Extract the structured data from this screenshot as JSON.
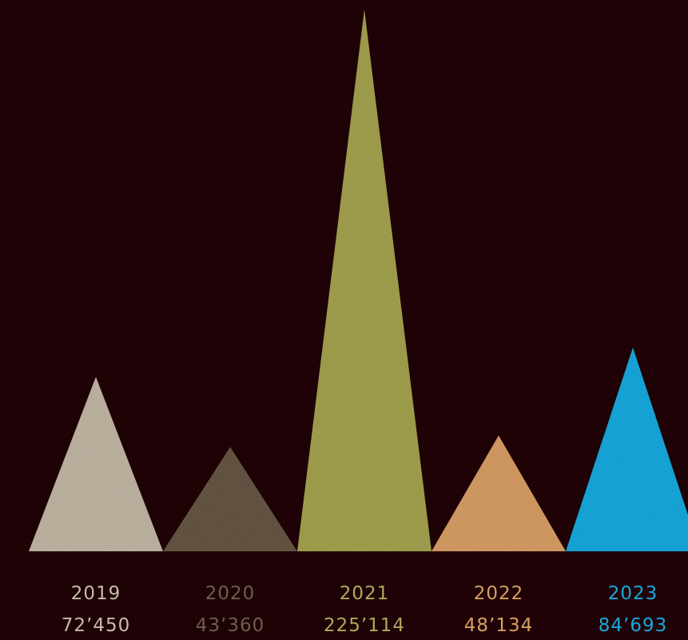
{
  "chart_data": {
    "type": "bar",
    "shape": "triangle",
    "title": "",
    "xlabel": "",
    "ylabel": "",
    "categories": [
      "2019",
      "2020",
      "2021",
      "2022",
      "2023"
    ],
    "values": [
      72450,
      43360,
      225114,
      48134,
      84693
    ],
    "value_labels": [
      "72’450",
      "43’360",
      "225’114",
      "48’134",
      "84’693"
    ],
    "colors": [
      "#c0b5a3",
      "#665744",
      "#a3a14f",
      "#d69d65",
      "#1aa8dc"
    ],
    "label_colors": [
      "#c7bcaa",
      "#6d5e4b",
      "#aea95e",
      "#d89e64",
      "#1aa8dc"
    ],
    "ylim": [
      0,
      225114
    ],
    "grid": false,
    "legend": "none"
  },
  "background_color": "#1e0205"
}
